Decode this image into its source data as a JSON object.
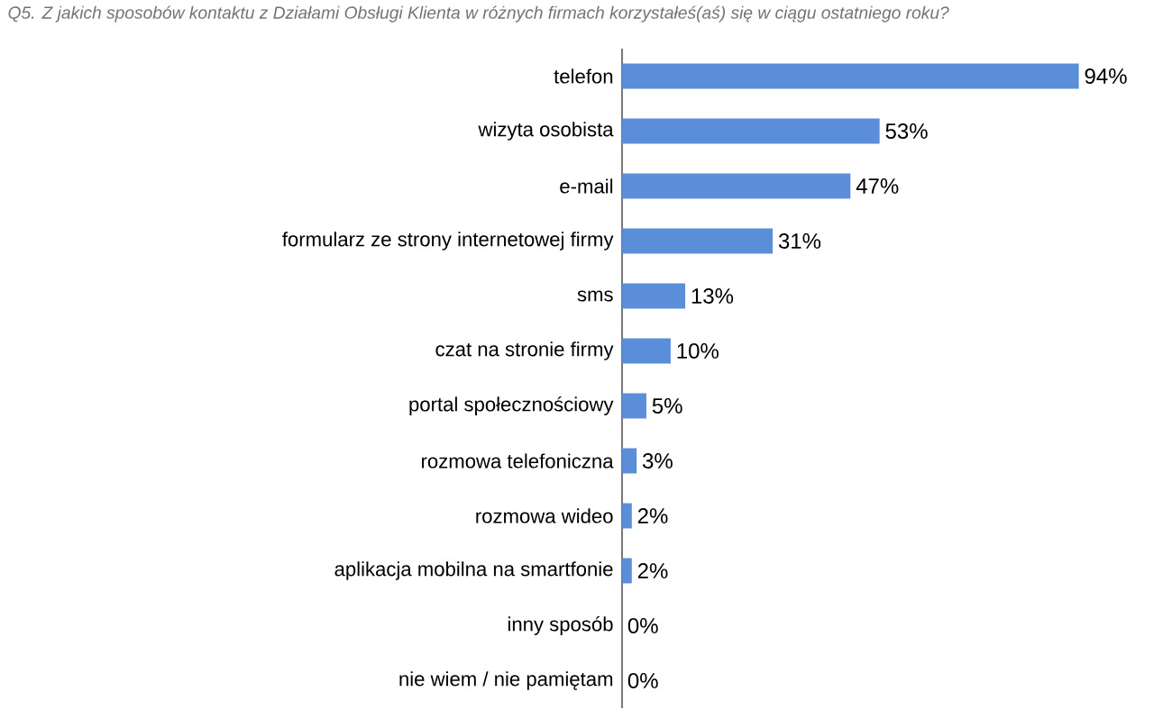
{
  "chart_data": {
    "type": "bar",
    "orientation": "horizontal",
    "title": "Q5. Z jakich sposobów kontaktu z Działami Obsługi Klienta w różnych firmach korzystałeś(aś) się w ciągu ostatniego roku?",
    "categories": [
      "telefon",
      "wizyta osobista",
      "e-mail",
      "formularz ze strony internetowej firmy",
      "sms",
      "czat na stronie firmy",
      "portal społecznościowy",
      "rozmowa telefoniczna",
      "rozmowa wideo",
      "aplikacja mobilna na smartfonie",
      "inny sposób",
      "nie wiem / nie pamiętam"
    ],
    "values": [
      94,
      53,
      47,
      31,
      13,
      10,
      5,
      3,
      2,
      2,
      0,
      0
    ],
    "value_labels": [
      "94%",
      "53%",
      "47%",
      "31%",
      "13%",
      "10%",
      "5%",
      "3%",
      "2%",
      "2%",
      "0%",
      "0%"
    ],
    "data_labels": true,
    "color": "#5b8ed8",
    "tick_labels": "y"
  }
}
